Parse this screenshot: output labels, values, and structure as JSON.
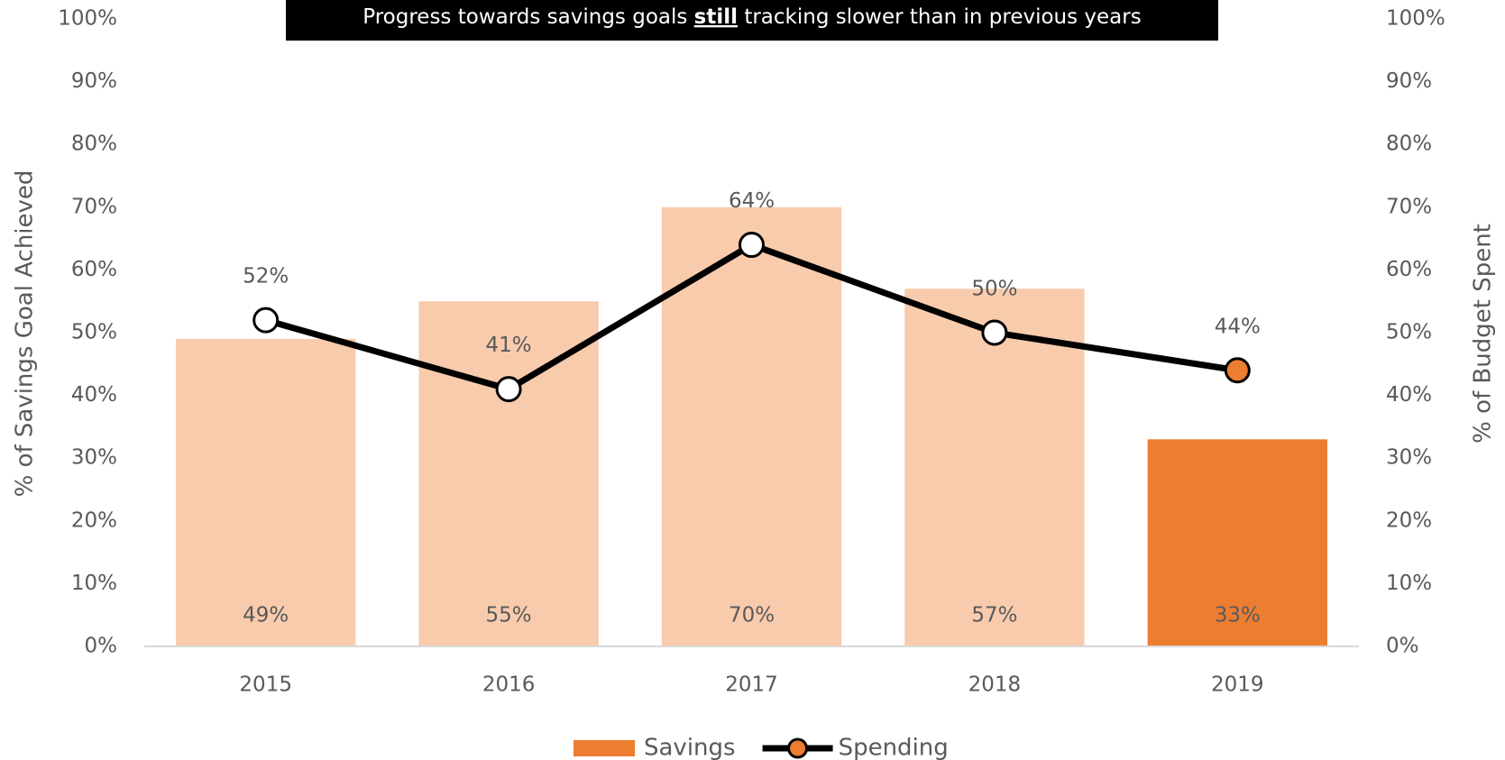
{
  "chart_data": {
    "type": "bar_line",
    "title_parts": [
      "Progress towards savings goals ",
      "still",
      " tracking slower than in previous years"
    ],
    "categories": [
      "2015",
      "2016",
      "2017",
      "2018",
      "2019"
    ],
    "series": [
      {
        "name": "Savings",
        "type": "bar",
        "color": "#ed7d31",
        "bar_colors": [
          "#f8cbad",
          "#f8cbad",
          "#f8cbad",
          "#f8cbad",
          "#ed7d31"
        ],
        "values": [
          49,
          55,
          70,
          57,
          33
        ],
        "value_labels": [
          "49%",
          "55%",
          "70%",
          "57%",
          "33%"
        ]
      },
      {
        "name": "Spending",
        "type": "line",
        "axis": "y2",
        "color": "#000000",
        "marker_colors": [
          "#ffffff",
          "#ffffff",
          "#ffffff",
          "#ffffff",
          "#ed7d31"
        ],
        "values": [
          52,
          41,
          64,
          50,
          44
        ],
        "value_labels": [
          "52%",
          "41%",
          "64%",
          "50%",
          "44%"
        ]
      }
    ],
    "ylabel": "% of Savings Goal Achieved",
    "y2label": "% of Budget Spent",
    "ylim": [
      0,
      100
    ],
    "yticks": [
      {
        "value": 0,
        "label": "0%"
      },
      {
        "value": 10,
        "label": "10%"
      },
      {
        "value": 20,
        "label": "20%"
      },
      {
        "value": 30,
        "label": "30%"
      },
      {
        "value": 40,
        "label": "40%"
      },
      {
        "value": 50,
        "label": "50%"
      },
      {
        "value": 60,
        "label": "60%"
      },
      {
        "value": 70,
        "label": "70%"
      },
      {
        "value": 80,
        "label": "80%"
      },
      {
        "value": 90,
        "label": "90%"
      },
      {
        "value": 100,
        "label": "100%"
      }
    ],
    "y2lim": [
      0,
      100
    ],
    "y2ticks": [
      {
        "value": 0,
        "label": "0%"
      },
      {
        "value": 10,
        "label": "10%"
      },
      {
        "value": 20,
        "label": "20%"
      },
      {
        "value": 30,
        "label": "30%"
      },
      {
        "value": 40,
        "label": "40%"
      },
      {
        "value": 50,
        "label": "50%"
      },
      {
        "value": 60,
        "label": "60%"
      },
      {
        "value": 70,
        "label": "70%"
      },
      {
        "value": 80,
        "label": "80%"
      },
      {
        "value": 90,
        "label": "90%"
      },
      {
        "value": 100,
        "label": "100%"
      }
    ],
    "grid": false,
    "legend": "bottom"
  }
}
